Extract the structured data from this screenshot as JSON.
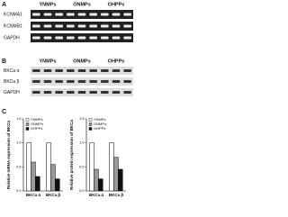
{
  "panel_a": {
    "label": "A",
    "headers": [
      "YNMPs",
      "ONMPs",
      "OHPPs"
    ],
    "rows": [
      "KCNMA1",
      "KCNMB1",
      "GAPDH"
    ]
  },
  "panel_b": {
    "label": "B",
    "headers": [
      "YNMPs",
      "ONMPs",
      "OHPPs"
    ],
    "rows": [
      "BKCa α",
      "BKCa β",
      "GAPDH"
    ]
  },
  "panel_c_label": "C",
  "chart_data": [
    {
      "type": "bar",
      "y_label": "Relative mRNA expression of BKCa",
      "categories": [
        "BKCa α",
        "BKCa β"
      ],
      "series": [
        {
          "name": "YNMPs",
          "color": "#ffffff",
          "values": [
            1.0,
            1.0
          ]
        },
        {
          "name": "ONMPs",
          "color": "#999999",
          "values": [
            0.6,
            0.55
          ]
        },
        {
          "name": "OHPPs",
          "color": "#111111",
          "values": [
            0.3,
            0.25
          ]
        }
      ],
      "ylim": [
        0,
        1.5
      ],
      "yticks": [
        {
          "value": 0,
          "label": "0.0"
        },
        0.5,
        {
          "value": 1,
          "label": "1.0"
        },
        1.5
      ]
    },
    {
      "type": "bar",
      "y_label": "Relative protein expression of BKCa",
      "categories": [
        "BKCa α",
        "BKCa β"
      ],
      "series": [
        {
          "name": "YNMPs",
          "color": "#ffffff",
          "values": [
            1.0,
            1.0
          ]
        },
        {
          "name": "ONMPs",
          "color": "#999999",
          "values": [
            0.45,
            0.7
          ]
        },
        {
          "name": "OHPPs",
          "color": "#111111",
          "values": [
            0.25,
            0.45
          ]
        }
      ],
      "ylim": [
        0,
        1.5
      ],
      "yticks": [
        {
          "value": 0,
          "label": "0.0"
        },
        0.5,
        {
          "value": 1,
          "label": "1.0"
        },
        1.5
      ]
    }
  ]
}
